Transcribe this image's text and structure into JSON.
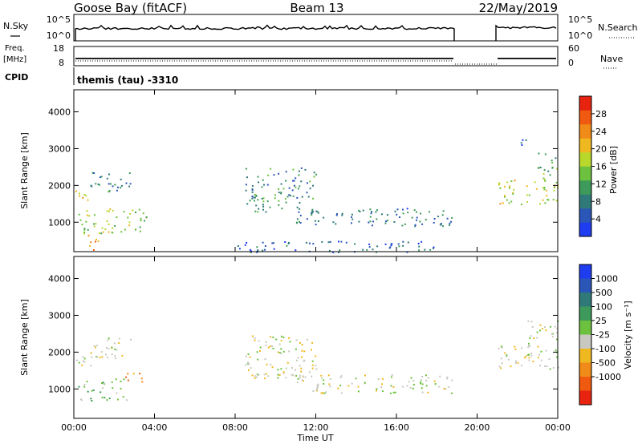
{
  "header": {
    "station": "Goose Bay (fitACF)",
    "beam": "Beam 13",
    "date": "22/May/2019"
  },
  "nsky_panel": {
    "left_label": "N.Sky",
    "right_label": "N.Search",
    "left_ticks": [
      "10^5",
      "10^0"
    ],
    "right_ticks": [
      "10^5",
      "10^0"
    ]
  },
  "freq_panel": {
    "left_label_1": "Freq.",
    "left_label_2": "[MHz]",
    "right_label": "Nave",
    "left_ticks": [
      "18",
      "8"
    ],
    "right_ticks": [
      "60",
      "0"
    ]
  },
  "cpid": {
    "label": "CPID",
    "value": "themis (tau) -3310"
  },
  "colors": {
    "power_scale": [
      "#1e3cf0",
      "#2a56b8",
      "#2f7a78",
      "#3d9a5a",
      "#6cc23e",
      "#b8d82c",
      "#f0b820",
      "#f08a18",
      "#f05a10",
      "#e82410"
    ],
    "velocity_scale": [
      "#1e3cf0",
      "#2a56b8",
      "#2f7a78",
      "#3d9a5a",
      "#6cc23e",
      "#c8c8c0",
      "#f0b820",
      "#f08a18",
      "#f05a10",
      "#e82410"
    ]
  },
  "chart_data": [
    {
      "type": "heatmap",
      "panel": "power",
      "ylabel": "Slant Range [km]",
      "yticks": [
        "1000",
        "2000",
        "3000",
        "4000"
      ],
      "ylim": [
        200,
        4600
      ],
      "xlim": [
        0,
        24
      ],
      "colorbar": {
        "label": "Power [dB]",
        "ticks": [
          "4",
          "8",
          "12",
          "16",
          "20",
          "24",
          "28"
        ],
        "range": [
          0,
          32
        ]
      },
      "regions": [
        {
          "t": [
            0.0,
            1.0
          ],
          "r": [
            1600,
            1900
          ],
          "v": 20
        },
        {
          "t": [
            0.8,
            2.8
          ],
          "r": [
            1800,
            2400
          ],
          "v": 8
        },
        {
          "t": [
            0.2,
            3.6
          ],
          "r": [
            700,
            1400
          ],
          "v": 16
        },
        {
          "t": [
            0.6,
            1.2
          ],
          "r": [
            200,
            700
          ],
          "v": 24
        },
        {
          "t": [
            8.5,
            12.0
          ],
          "r": [
            1300,
            2500
          ],
          "v": 10
        },
        {
          "t": [
            11.0,
            18.8
          ],
          "r": [
            900,
            1400
          ],
          "v": 8
        },
        {
          "t": [
            8.0,
            18.0
          ],
          "r": [
            200,
            500
          ],
          "v": 6
        },
        {
          "t": [
            21.0,
            24.0
          ],
          "r": [
            1500,
            2200
          ],
          "v": 18
        },
        {
          "t": [
            23.0,
            24.0
          ],
          "r": [
            2200,
            2900
          ],
          "v": 12
        },
        {
          "t": [
            22.0,
            22.6
          ],
          "r": [
            3100,
            3400
          ],
          "v": 4
        }
      ]
    },
    {
      "type": "heatmap",
      "panel": "velocity",
      "ylabel": "Slant Range [km]",
      "yticks": [
        "1000",
        "2000",
        "3000",
        "4000"
      ],
      "ylim": [
        200,
        4600
      ],
      "xlabel": "Time UT",
      "xticks": [
        "00:00",
        "04:00",
        "08:00",
        "12:00",
        "16:00",
        "20:00",
        "00:00"
      ],
      "xlim": [
        0,
        24
      ],
      "colorbar": {
        "label": "Velocity [m s⁻¹]",
        "ticks": [
          "1000",
          "500",
          "100",
          "25",
          "-25",
          "-100",
          "-500",
          "-1000"
        ]
      },
      "regions": [
        {
          "t": [
            0.0,
            1.0
          ],
          "r": [
            1600,
            2000
          ],
          "c": 5
        },
        {
          "t": [
            0.8,
            2.8
          ],
          "r": [
            1800,
            2400
          ],
          "c": 5
        },
        {
          "t": [
            0.2,
            2.6
          ],
          "r": [
            700,
            1300
          ],
          "c": 4
        },
        {
          "t": [
            2.5,
            3.6
          ],
          "r": [
            1200,
            1500
          ],
          "c": 7
        },
        {
          "t": [
            8.5,
            12.0
          ],
          "r": [
            1300,
            2500
          ],
          "c": 5
        },
        {
          "t": [
            11.0,
            18.8
          ],
          "r": [
            900,
            1400
          ],
          "c": 5
        },
        {
          "t": [
            21.0,
            24.0
          ],
          "r": [
            1500,
            2200
          ],
          "c": 5
        },
        {
          "t": [
            22.5,
            24.0
          ],
          "r": [
            2200,
            2900
          ],
          "c": 5
        }
      ]
    }
  ]
}
